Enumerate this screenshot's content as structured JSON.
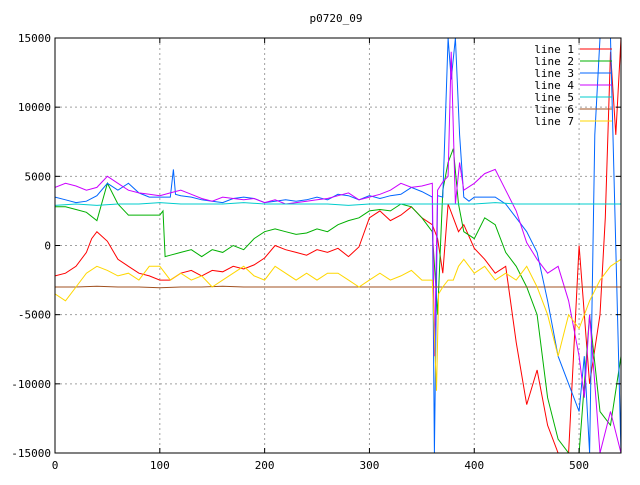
{
  "chart_data": {
    "type": "line",
    "title": "p0720_09",
    "xlabel": "",
    "ylabel": "",
    "xlim": [
      0,
      540
    ],
    "ylim": [
      -15000,
      15000
    ],
    "xticks": [
      0,
      100,
      200,
      300,
      400,
      500
    ],
    "yticks": [
      -15000,
      -10000,
      -5000,
      0,
      5000,
      10000,
      15000
    ],
    "grid": true,
    "legend_position": "top-right",
    "series": [
      {
        "name": "line 1",
        "color": "#ff0000",
        "x": [
          0,
          10,
          20,
          30,
          35,
          40,
          50,
          60,
          70,
          80,
          90,
          100,
          110,
          120,
          130,
          140,
          150,
          160,
          170,
          180,
          190,
          200,
          210,
          220,
          230,
          240,
          250,
          260,
          270,
          280,
          290,
          300,
          310,
          320,
          330,
          340,
          350,
          360,
          365,
          370,
          375,
          380,
          385,
          390,
          400,
          410,
          420,
          430,
          440,
          450,
          460,
          470,
          480,
          490,
          500,
          510,
          520,
          525,
          530,
          535,
          540
        ],
        "y": [
          -2200,
          -2000,
          -1500,
          -500,
          500,
          1000,
          300,
          -1000,
          -1500,
          -2000,
          -2200,
          -2500,
          -2500,
          -2000,
          -1800,
          -2200,
          -1800,
          -1900,
          -1500,
          -1700,
          -1400,
          -900,
          0,
          -300,
          -500,
          -700,
          -300,
          -500,
          -200,
          -800,
          -100,
          2000,
          2500,
          1800,
          2200,
          2800,
          2000,
          1500,
          500,
          -2000,
          3000,
          2000,
          1000,
          1500,
          -200,
          -1000,
          -2000,
          -1500,
          -7000,
          -11500,
          -9000,
          -13000,
          -15000,
          -15000,
          0,
          -10000,
          -5000,
          2000,
          14000,
          8000,
          15000
        ]
      },
      {
        "name": "line 2",
        "color": "#00b000",
        "x": [
          0,
          10,
          20,
          30,
          40,
          50,
          60,
          70,
          80,
          90,
          100,
          103,
          105,
          110,
          120,
          130,
          140,
          150,
          160,
          170,
          180,
          190,
          200,
          210,
          220,
          230,
          240,
          250,
          260,
          270,
          280,
          290,
          300,
          310,
          320,
          330,
          340,
          350,
          360,
          365,
          370,
          375,
          380,
          385,
          390,
          400,
          410,
          420,
          430,
          440,
          450,
          460,
          470,
          480,
          490,
          500,
          510,
          520,
          530,
          540
        ],
        "y": [
          2800,
          2800,
          2600,
          2400,
          1800,
          4500,
          3000,
          2200,
          2200,
          2200,
          2200,
          2500,
          -800,
          -700,
          -500,
          -300,
          -800,
          -300,
          -500,
          0,
          -300,
          500,
          1000,
          1200,
          1000,
          800,
          900,
          1200,
          1000,
          1500,
          1800,
          2000,
          2500,
          2600,
          2500,
          3000,
          2800,
          2000,
          1000,
          -5000,
          4000,
          6000,
          7000,
          3000,
          1000,
          500,
          2000,
          1500,
          -500,
          -1500,
          -3000,
          -5000,
          -11000,
          -14000,
          -15000,
          -15000,
          -5000,
          -12000,
          -13000,
          -8000
        ]
      },
      {
        "name": "line 3",
        "color": "#0066ff",
        "x": [
          0,
          10,
          20,
          30,
          40,
          50,
          60,
          70,
          80,
          90,
          100,
          110,
          113,
          115,
          120,
          130,
          140,
          150,
          160,
          170,
          180,
          190,
          200,
          210,
          220,
          230,
          240,
          250,
          260,
          270,
          280,
          290,
          300,
          310,
          320,
          330,
          340,
          350,
          360,
          362,
          365,
          370,
          375,
          378,
          382,
          386,
          390,
          395,
          400,
          410,
          420,
          430,
          440,
          450,
          460,
          470,
          480,
          490,
          500,
          505,
          510,
          515,
          520,
          530,
          540
        ],
        "y": [
          3500,
          3300,
          3100,
          3200,
          3600,
          4500,
          4000,
          4500,
          3800,
          3500,
          3500,
          3500,
          5500,
          3700,
          3600,
          3500,
          3300,
          3200,
          3100,
          3400,
          3500,
          3400,
          3100,
          3200,
          3300,
          3200,
          3300,
          3500,
          3300,
          3700,
          3600,
          3300,
          3600,
          3400,
          3600,
          3700,
          4200,
          3900,
          3500,
          -15000,
          3600,
          3500,
          15000,
          12000,
          15000,
          8000,
          3500,
          3200,
          3500,
          3500,
          3500,
          3000,
          2000,
          1000,
          -500,
          -4000,
          -8000,
          -10000,
          -12000,
          -8000,
          -15000,
          8000,
          15000,
          15000,
          -15000
        ]
      },
      {
        "name": "line 4",
        "color": "#cc00ff",
        "x": [
          0,
          10,
          20,
          30,
          40,
          50,
          60,
          70,
          80,
          90,
          100,
          110,
          120,
          130,
          140,
          150,
          160,
          170,
          180,
          190,
          200,
          210,
          220,
          230,
          240,
          250,
          260,
          270,
          280,
          290,
          300,
          310,
          320,
          330,
          340,
          350,
          360,
          362,
          365,
          370,
          375,
          378,
          382,
          386,
          390,
          400,
          410,
          420,
          430,
          440,
          450,
          460,
          470,
          480,
          490,
          500,
          505,
          510,
          520,
          530,
          540
        ],
        "y": [
          4200,
          4500,
          4300,
          4000,
          4200,
          5000,
          4500,
          4000,
          3800,
          3700,
          3600,
          3800,
          4000,
          3700,
          3400,
          3200,
          3500,
          3400,
          3300,
          3400,
          3100,
          3300,
          3000,
          3100,
          3200,
          3300,
          3400,
          3600,
          3800,
          3300,
          3500,
          3700,
          4000,
          4500,
          4200,
          4300,
          4500,
          -8000,
          4000,
          4600,
          5000,
          14000,
          3000,
          6000,
          4000,
          4500,
          5200,
          5500,
          4000,
          2500,
          200,
          -1000,
          -2000,
          -1500,
          -4000,
          -8000,
          -11000,
          -5000,
          -15000,
          -12000,
          -15000
        ]
      },
      {
        "name": "line 5",
        "color": "#00cccc",
        "x": [
          0,
          20,
          40,
          60,
          80,
          100,
          120,
          140,
          160,
          180,
          200,
          220,
          240,
          260,
          280,
          300,
          320,
          340,
          360,
          380,
          400,
          420,
          440,
          460,
          480,
          500,
          520,
          540
        ],
        "y": [
          2900,
          3000,
          2900,
          3000,
          3000,
          3100,
          3000,
          3000,
          3000,
          3100,
          3000,
          3000,
          3000,
          3000,
          2900,
          3000,
          3000,
          3000,
          3000,
          3000,
          3000,
          3100,
          3000,
          3000,
          3000,
          3000,
          3000,
          3000
        ]
      },
      {
        "name": "line 6",
        "color": "#a05020",
        "x": [
          0,
          20,
          40,
          60,
          80,
          100,
          120,
          140,
          160,
          180,
          200,
          220,
          240,
          260,
          280,
          300,
          320,
          340,
          360,
          380,
          400,
          420,
          440,
          460,
          480,
          500,
          520,
          540
        ],
        "y": [
          -3000,
          -3000,
          -2950,
          -3000,
          -3000,
          -3050,
          -3000,
          -3000,
          -2950,
          -3000,
          -3000,
          -3000,
          -3000,
          -3000,
          -3000,
          -3000,
          -3000,
          -3000,
          -3000,
          -3000,
          -3000,
          -3000,
          -3000,
          -3000,
          -3000,
          -3000,
          -3000,
          -3000
        ]
      },
      {
        "name": "line 7",
        "color": "#ffd700",
        "x": [
          0,
          10,
          20,
          30,
          40,
          50,
          60,
          70,
          80,
          90,
          100,
          110,
          120,
          130,
          140,
          150,
          160,
          170,
          180,
          190,
          200,
          210,
          220,
          230,
          240,
          250,
          260,
          270,
          280,
          290,
          300,
          310,
          320,
          330,
          340,
          350,
          360,
          364,
          366,
          370,
          375,
          380,
          385,
          390,
          400,
          410,
          420,
          430,
          440,
          450,
          460,
          470,
          480,
          490,
          500,
          510,
          520,
          530,
          540
        ],
        "y": [
          -3500,
          -4000,
          -3000,
          -2000,
          -1500,
          -1800,
          -2200,
          -2000,
          -2500,
          -1500,
          -1500,
          -2500,
          -2000,
          -2500,
          -2200,
          -3000,
          -2500,
          -2000,
          -1500,
          -2200,
          -2500,
          -1500,
          -2000,
          -2500,
          -2000,
          -2500,
          -2000,
          -2000,
          -2500,
          -3000,
          -2500,
          -2000,
          -2500,
          -2200,
          -1800,
          -2500,
          -2500,
          -10500,
          -3500,
          -3000,
          -2500,
          -2500,
          -1500,
          -1000,
          -2000,
          -1500,
          -2500,
          -2000,
          -2500,
          -1500,
          -3000,
          -5000,
          -8000,
          -5000,
          -6000,
          -4000,
          -2500,
          -1500,
          -1000
        ]
      }
    ]
  }
}
